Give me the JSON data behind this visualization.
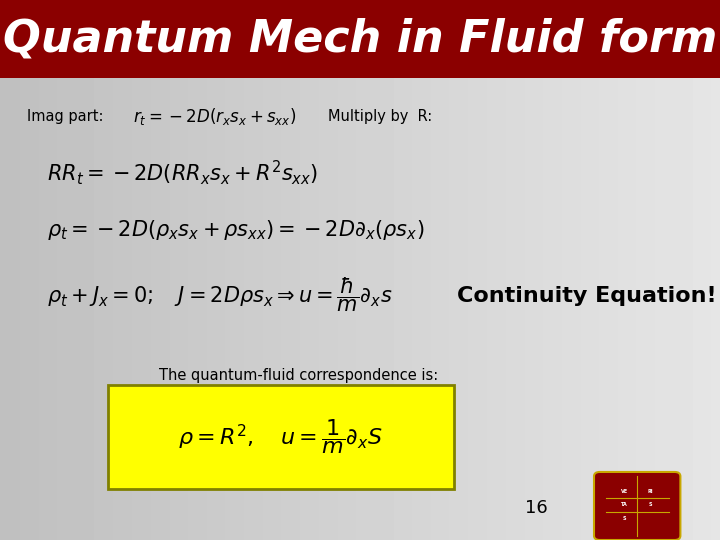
{
  "title": "Quantum Mech in Fluid form",
  "title_bg": "#8B0000",
  "title_color": "#FFFFFF",
  "title_fontsize": 32,
  "label_imag": "Imag part:",
  "label_multiply": "Multiply by  R:",
  "label_continuity": "Continuity Equation!",
  "label_correspondence": "The quantum-fluid correspondence is:",
  "eq1": "$r_t = -2D(r_x s_x + s_{xx})$",
  "eq2": "$RR_t = -2D(RR_x s_x + R^2 s_{xx})$",
  "eq3": "$\\rho_t = -2D(\\rho_x s_x + \\rho s_{xx}) = -2D\\partial_x(\\rho s_x)$",
  "eq4": "$\\rho_t + J_x = 0; \\quad J = 2D\\rho s_x \\Rightarrow u = \\dfrac{\\hbar}{m}\\partial_x s$",
  "eq5": "$\\rho = R^2, \\quad u = \\dfrac{1}{m}\\partial_x S$",
  "page_number": "16",
  "yellow_box_color": "#FFFF00",
  "yellow_box_edge": "#808000",
  "continuity_fontsize": 16,
  "eq_fontsize": 15
}
